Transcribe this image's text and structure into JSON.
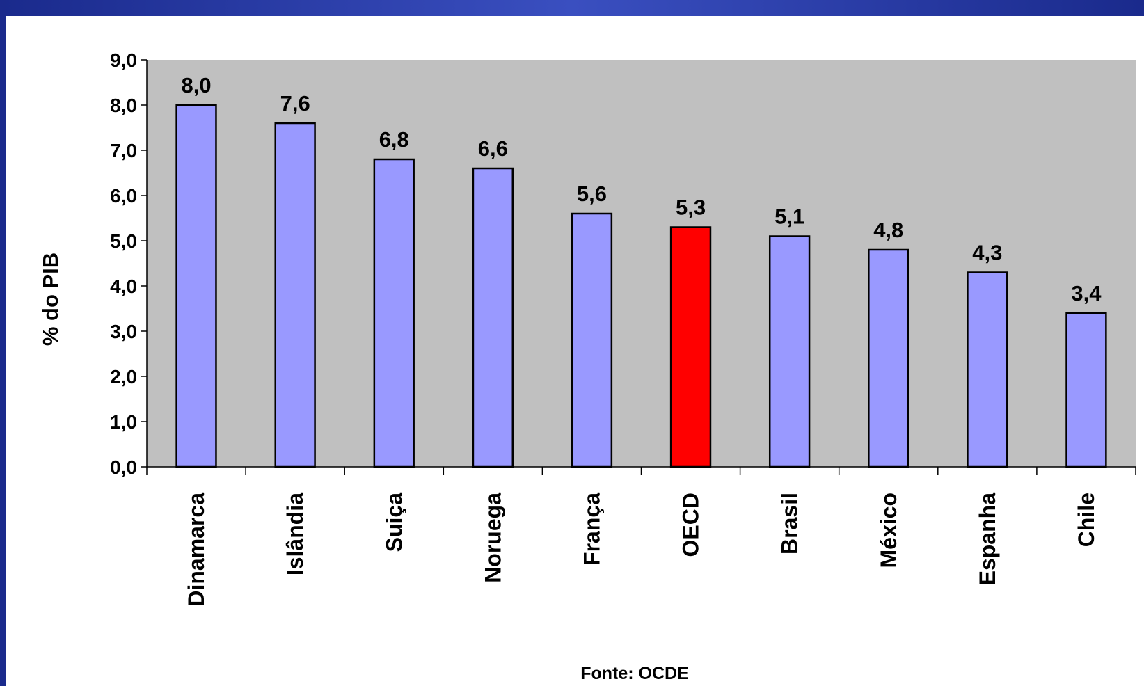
{
  "chart_data": {
    "type": "bar",
    "y_label": "% do PIB",
    "source": "Fonte: OCDE",
    "categories": [
      "Dinamarca",
      "Islândia",
      "Suiça",
      "Noruega",
      "França",
      "OECD",
      "Brasil",
      "México",
      "Espanha",
      "Chile"
    ],
    "values": [
      8.0,
      7.6,
      6.8,
      6.6,
      5.6,
      5.3,
      5.1,
      4.8,
      4.3,
      3.4
    ],
    "value_labels": [
      "8,0",
      "7,6",
      "6,8",
      "6,6",
      "5,6",
      "5,3",
      "5,1",
      "4,8",
      "4,3",
      "3,4"
    ],
    "colors": [
      "#9999ff",
      "#9999ff",
      "#9999ff",
      "#9999ff",
      "#9999ff",
      "#ff0000",
      "#9999ff",
      "#9999ff",
      "#9999ff",
      "#9999ff"
    ],
    "label_colors": [
      "#000000",
      "#000000",
      "#000000",
      "#000000",
      "#000000",
      "#000000",
      "#ff0000",
      "#000000",
      "#000000",
      "#000000"
    ],
    "ylim": [
      0,
      9
    ],
    "yticks": [
      {
        "value": 0,
        "label": "0,0"
      },
      {
        "value": 1,
        "label": "1,0"
      },
      {
        "value": 2,
        "label": "2,0"
      },
      {
        "value": 3,
        "label": "3,0"
      },
      {
        "value": 4,
        "label": "4,0"
      },
      {
        "value": 5,
        "label": "5,0"
      },
      {
        "value": 6,
        "label": "6,0"
      },
      {
        "value": 7,
        "label": "7,0"
      },
      {
        "value": 8,
        "label": "8,0"
      },
      {
        "value": 9,
        "label": "9,0"
      }
    ],
    "plot_background": "#c0c0c0"
  }
}
